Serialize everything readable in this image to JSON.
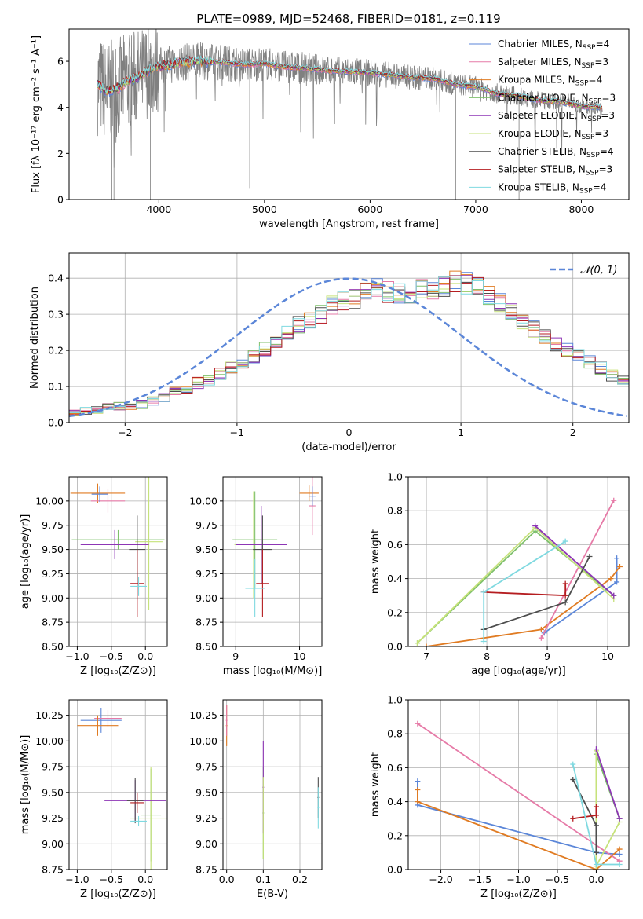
{
  "figure": {
    "title": "PLATE=0989, MJD=52468, FIBERID=0181, z=0.119"
  },
  "colors": {
    "chabrier_miles": "#5b86d8",
    "salpeter_miles": "#e67aa7",
    "kroupa_miles": "#e07b22",
    "chabrier_elodie": "#7fc06c",
    "salpeter_elodie": "#8d35b5",
    "kroupa_elodie": "#c6e27a",
    "chabrier_stelib": "#4d4d4d",
    "salpeter_stelib": "#b51d20",
    "kroupa_stelib": "#7fd9e0",
    "data": "#808080",
    "normal_curve": "#5b86d8",
    "grid": "#b0b0b0"
  },
  "chart_data": [
    {
      "id": "spectrum",
      "type": "line",
      "xlabel": "wavelength [Angstrom, rest frame]",
      "ylabel": "Flux [fλ 10⁻¹⁷ erg cm⁻² s⁻¹ A⁻¹]",
      "xlim": [
        3150,
        8450
      ],
      "ylim": [
        0,
        7.4
      ],
      "xticks": [
        4000,
        5000,
        6000,
        7000,
        8000
      ],
      "yticks": [
        0,
        2,
        4,
        6
      ],
      "grid": false,
      "legend_position": "right",
      "legend": [
        {
          "color": "chabrier_miles",
          "label": "Chabrier MILES, N",
          "sub": "SSP",
          "tail": "=4"
        },
        {
          "color": "salpeter_miles",
          "label": "Salpeter MILES, N",
          "sub": "SSP",
          "tail": "=3"
        },
        {
          "color": "kroupa_miles",
          "label": "Kroupa MILES, N",
          "sub": "SSP",
          "tail": "=4"
        },
        {
          "color": "chabrier_elodie",
          "label": "Chabrier ELODIE, N",
          "sub": "SSP",
          "tail": "=3"
        },
        {
          "color": "salpeter_elodie",
          "label": "Salpeter ELODIE, N",
          "sub": "SSP",
          "tail": "=3"
        },
        {
          "color": "kroupa_elodie",
          "label": "Kroupa ELODIE, N",
          "sub": "SSP",
          "tail": "=3"
        },
        {
          "color": "chabrier_stelib",
          "label": "Chabrier STELIB, N",
          "sub": "SSP",
          "tail": "=4"
        },
        {
          "color": "salpeter_stelib",
          "label": "Salpeter STELIB, N",
          "sub": "SSP",
          "tail": "=3"
        },
        {
          "color": "kroupa_stelib",
          "label": "Kroupa STELIB, N",
          "sub": "SSP",
          "tail": "=4"
        }
      ],
      "continuum": [
        [
          3420,
          5.0
        ],
        [
          3500,
          4.7
        ],
        [
          3600,
          4.8
        ],
        [
          3700,
          5.15
        ],
        [
          3800,
          5.3
        ],
        [
          3900,
          5.6
        ],
        [
          4000,
          5.75
        ],
        [
          4200,
          5.95
        ],
        [
          4400,
          6.0
        ],
        [
          4600,
          5.95
        ],
        [
          4800,
          5.85
        ],
        [
          5000,
          5.9
        ],
        [
          5200,
          5.75
        ],
        [
          5400,
          5.7
        ],
        [
          5600,
          5.6
        ],
        [
          5800,
          5.55
        ],
        [
          6000,
          5.5
        ],
        [
          6200,
          5.4
        ],
        [
          6400,
          5.3
        ],
        [
          6600,
          5.25
        ],
        [
          6800,
          5.0
        ],
        [
          7000,
          4.9
        ],
        [
          7200,
          4.6
        ],
        [
          7400,
          4.5
        ],
        [
          7600,
          4.3
        ],
        [
          7800,
          4.25
        ],
        [
          8000,
          4.05
        ],
        [
          8200,
          4.0
        ]
      ],
      "data_noise": {
        "x_start": 3420,
        "x_end": 8200,
        "amplitude_blue": 1.6,
        "amplitude_red": 0.5
      },
      "dropouts": [
        [
          3555,
          0
        ],
        [
          3575,
          0
        ],
        [
          3920,
          0
        ],
        [
          4860,
          0.5
        ],
        [
          6810,
          0
        ],
        [
          7410,
          0
        ]
      ]
    },
    {
      "id": "residuals",
      "type": "bar",
      "xlabel": "(data-model)/error",
      "ylabel": "Normed distribution",
      "xlim": [
        -2.5,
        2.5
      ],
      "ylim": [
        0,
        0.47
      ],
      "xticks": [
        -2,
        -1,
        0,
        1,
        2
      ],
      "yticks": [
        0.0,
        0.1,
        0.2,
        0.3,
        0.4
      ],
      "grid": true,
      "legend_position": "top-right",
      "legend_label": "𝒩(0, 1)",
      "bin_width": 0.1,
      "bin_start": -2.5,
      "mean_hist": [
        0.03,
        0.033,
        0.037,
        0.042,
        0.045,
        0.045,
        0.05,
        0.06,
        0.07,
        0.085,
        0.095,
        0.11,
        0.12,
        0.135,
        0.15,
        0.17,
        0.185,
        0.205,
        0.225,
        0.245,
        0.27,
        0.285,
        0.3,
        0.325,
        0.335,
        0.345,
        0.36,
        0.37,
        0.36,
        0.355,
        0.34,
        0.37,
        0.37,
        0.38,
        0.39,
        0.385,
        0.375,
        0.35,
        0.33,
        0.31,
        0.285,
        0.26,
        0.235,
        0.215,
        0.2,
        0.185,
        0.17,
        0.15,
        0.13,
        0.115,
        0.105,
        0.09,
        0.078,
        0.065,
        0.058,
        0.05,
        0.045,
        0.04,
        0.035,
        0.032
      ],
      "normal_curve": {
        "mean": 0,
        "sigma": 1
      }
    },
    {
      "id": "age_vs_Z",
      "type": "scatter",
      "xlabel": "Z [log10(Z/Z☉)]",
      "ylabel": "age  [log10(age/yr)]",
      "xlim": [
        -1.12,
        0.32
      ],
      "ylim": [
        8.5,
        10.25
      ],
      "xticks": [
        -1.0,
        -0.5,
        0.0
      ],
      "yticks": [
        8.5,
        8.75,
        9.0,
        9.25,
        9.5,
        9.75,
        10.0
      ],
      "grid": true,
      "points": [
        {
          "c": "kroupa_miles",
          "x": -0.7,
          "y": 10.08,
          "xerr": 0.4,
          "yerr": 0.1
        },
        {
          "c": "salpeter_miles",
          "x": -0.55,
          "y": 10.0,
          "xerr": 0.25,
          "yerr": 0.12
        },
        {
          "c": "chabrier_miles",
          "x": -0.67,
          "y": 10.07,
          "xerr": 0.12,
          "yerr": 0.08
        },
        {
          "c": "chabrier_elodie",
          "x": -0.4,
          "y": 9.6,
          "xerr": 0.68,
          "yerr": 0.1
        },
        {
          "c": "kroupa_elodie",
          "x": 0.05,
          "y": 9.58,
          "xerr": 0.2,
          "yerr": 0.7
        },
        {
          "c": "salpeter_elodie",
          "x": -0.45,
          "y": 9.55,
          "xerr": 0.5,
          "yerr": 0.15
        },
        {
          "c": "chabrier_stelib",
          "x": -0.12,
          "y": 9.5,
          "xerr": 0.12,
          "yerr": 0.35
        },
        {
          "c": "salpeter_stelib",
          "x": -0.12,
          "y": 9.15,
          "xerr": 0.1,
          "yerr": 0.35
        },
        {
          "c": "kroupa_stelib",
          "x": -0.1,
          "y": 9.12,
          "xerr": 0.12,
          "yerr": 0.1
        }
      ]
    },
    {
      "id": "age_vs_mass",
      "type": "scatter",
      "xlabel": "mass [log10(M/M☉)]",
      "ylabel": "",
      "xlim": [
        8.8,
        10.35
      ],
      "ylim": [
        8.5,
        10.25
      ],
      "xticks": [
        9,
        10
      ],
      "yticks": [
        8.5,
        8.75,
        9.0,
        9.25,
        9.5,
        9.75,
        10.0
      ],
      "grid": true,
      "points": [
        {
          "c": "kroupa_miles",
          "x": 10.15,
          "y": 10.08,
          "xerr": 0.15,
          "yerr": 0.08
        },
        {
          "c": "salpeter_miles",
          "x": 10.2,
          "y": 9.95,
          "xerr": 0.05,
          "yerr": 0.3
        },
        {
          "c": "chabrier_miles",
          "x": 10.2,
          "y": 10.05,
          "xerr": 0.05,
          "yerr": 0.1
        },
        {
          "c": "chabrier_elodie",
          "x": 9.3,
          "y": 9.6,
          "xerr": 0.35,
          "yerr": 0.5
        },
        {
          "c": "kroupa_elodie",
          "x": 9.28,
          "y": 9.55,
          "xerr": 0.3,
          "yerr": 0.55
        },
        {
          "c": "salpeter_elodie",
          "x": 9.4,
          "y": 9.55,
          "xerr": 0.4,
          "yerr": 0.4
        },
        {
          "c": "chabrier_stelib",
          "x": 9.42,
          "y": 9.5,
          "xerr": 0.15,
          "yerr": 0.35
        },
        {
          "c": "salpeter_stelib",
          "x": 9.42,
          "y": 9.15,
          "xerr": 0.1,
          "yerr": 0.35
        },
        {
          "c": "kroupa_stelib",
          "x": 9.3,
          "y": 9.1,
          "xerr": 0.15,
          "yerr": 0.3
        }
      ]
    },
    {
      "id": "mass_weight_vs_age",
      "type": "line",
      "xlabel": "age  [log10(age/yr)]",
      "ylabel": "mass weight",
      "xlim": [
        6.7,
        10.35
      ],
      "ylim": [
        0,
        1.0
      ],
      "xticks": [
        7,
        8,
        9,
        10
      ],
      "yticks": [
        0.0,
        0.2,
        0.4,
        0.6,
        0.8,
        1.0
      ],
      "grid": true,
      "series": [
        {
          "c": "chabrier_miles",
          "x": [
            8.95,
            10.15,
            10.15
          ],
          "y": [
            0.08,
            0.38,
            0.52
          ]
        },
        {
          "c": "kroupa_miles",
          "x": [
            7.0,
            8.9,
            10.05,
            10.2
          ],
          "y": [
            0.0,
            0.1,
            0.4,
            0.47
          ]
        },
        {
          "c": "salpeter_miles",
          "x": [
            8.9,
            10.1
          ],
          "y": [
            0.05,
            0.86
          ]
        },
        {
          "c": "chabrier_elodie",
          "x": [
            6.85,
            8.8,
            10.1
          ],
          "y": [
            0.02,
            0.68,
            0.3
          ]
        },
        {
          "c": "kroupa_elodie",
          "x": [
            6.85,
            8.8,
            10.1
          ],
          "y": [
            0.02,
            0.7,
            0.28
          ]
        },
        {
          "c": "salpeter_elodie",
          "x": [
            8.8,
            10.1
          ],
          "y": [
            0.71,
            0.3
          ]
        },
        {
          "c": "chabrier_stelib",
          "x": [
            7.95,
            9.3,
            9.7
          ],
          "y": [
            0.1,
            0.26,
            0.53
          ]
        },
        {
          "c": "salpeter_stelib",
          "x": [
            7.95,
            9.3,
            9.3
          ],
          "y": [
            0.32,
            0.3,
            0.37
          ]
        },
        {
          "c": "kroupa_stelib",
          "x": [
            7.95,
            7.95,
            9.3
          ],
          "y": [
            0.03,
            0.32,
            0.62
          ]
        }
      ]
    },
    {
      "id": "mass_vs_Z",
      "type": "scatter",
      "xlabel": "Z [log10(Z/Z☉)]",
      "ylabel": "mass [log10(M/M☉)]",
      "xlim": [
        -1.12,
        0.32
      ],
      "ylim": [
        8.75,
        10.4
      ],
      "xticks": [
        -1.0,
        -0.5,
        0.0
      ],
      "yticks": [
        8.75,
        9.0,
        9.25,
        9.5,
        9.75,
        10.0,
        10.25
      ],
      "grid": true,
      "points": [
        {
          "c": "chabrier_miles",
          "x": -0.65,
          "y": 10.2,
          "xerr": 0.3,
          "yerr": 0.12
        },
        {
          "c": "salpeter_miles",
          "x": -0.55,
          "y": 10.22,
          "xerr": 0.2,
          "yerr": 0.08
        },
        {
          "c": "kroupa_miles",
          "x": -0.7,
          "y": 10.15,
          "xerr": 0.3,
          "yerr": 0.1
        },
        {
          "c": "chabrier_elodie",
          "x": 0.08,
          "y": 9.28,
          "xerr": 0.15,
          "yerr": 0.45
        },
        {
          "c": "kroupa_elodie",
          "x": 0.08,
          "y": 9.25,
          "xerr": 0.3,
          "yerr": 0.5
        },
        {
          "c": "salpeter_elodie",
          "x": -0.15,
          "y": 9.42,
          "xerr": 0.45,
          "yerr": 0.2
        },
        {
          "c": "chabrier_stelib",
          "x": -0.15,
          "y": 9.42,
          "xerr": 0.12,
          "yerr": 0.22
        },
        {
          "c": "salpeter_stelib",
          "x": -0.12,
          "y": 9.4,
          "xerr": 0.1,
          "yerr": 0.1
        },
        {
          "c": "kroupa_stelib",
          "x": -0.1,
          "y": 9.22,
          "xerr": 0.12,
          "yerr": 0.05
        }
      ]
    },
    {
      "id": "mass_vs_ebv",
      "type": "scatter",
      "xlabel": "E(B-V)",
      "ylabel": "",
      "xlim": [
        -0.01,
        0.26
      ],
      "ylim": [
        8.75,
        10.4
      ],
      "xticks": [
        0.0,
        0.1,
        0.2
      ],
      "yticks": [
        8.75,
        9.0,
        9.25,
        9.5,
        9.75,
        10.0,
        10.25
      ],
      "grid": true,
      "points": [
        {
          "c": "kroupa_miles",
          "x": 0.0,
          "y": 10.15,
          "xerr": 0.0,
          "yerr": 0.2
        },
        {
          "c": "salpeter_miles",
          "x": 0.0,
          "y": 10.2,
          "xerr": 0.0,
          "yerr": 0.15
        },
        {
          "c": "chabrier_elodie",
          "x": 0.1,
          "y": 9.3,
          "xerr": 0.0,
          "yerr": 0.45
        },
        {
          "c": "salpeter_elodie",
          "x": 0.1,
          "y": 9.55,
          "xerr": 0.0,
          "yerr": 0.45
        },
        {
          "c": "kroupa_elodie",
          "x": 0.1,
          "y": 9.25,
          "xerr": 0.0,
          "yerr": 0.4
        },
        {
          "c": "chabrier_stelib",
          "x": 0.25,
          "y": 9.45,
          "xerr": 0.0,
          "yerr": 0.2
        },
        {
          "c": "kroupa_stelib",
          "x": 0.25,
          "y": 9.35,
          "xerr": 0.0,
          "yerr": 0.2
        }
      ]
    },
    {
      "id": "mass_weight_vs_Z",
      "type": "line",
      "xlabel": "Z [log10(Z/Z☉)]",
      "ylabel": "mass weight",
      "xlim": [
        -2.42,
        0.42
      ],
      "ylim": [
        0,
        1.0
      ],
      "xticks": [
        -2.0,
        -1.5,
        -1.0,
        -0.5,
        0.0
      ],
      "yticks": [
        0.0,
        0.2,
        0.4,
        0.6,
        0.8,
        1.0
      ],
      "grid": true,
      "series": [
        {
          "c": "chabrier_miles",
          "x": [
            -2.3,
            -2.3,
            0.0,
            0.3
          ],
          "y": [
            0.52,
            0.38,
            0.1,
            0.09
          ]
        },
        {
          "c": "kroupa_miles",
          "x": [
            -2.3,
            -2.3,
            0.0,
            0.3
          ],
          "y": [
            0.47,
            0.4,
            0.0,
            0.12
          ]
        },
        {
          "c": "salpeter_miles",
          "x": [
            -2.3,
            0.3
          ],
          "y": [
            0.86,
            0.05
          ]
        },
        {
          "c": "chabrier_elodie",
          "x": [
            0.0,
            0.3
          ],
          "y": [
            0.68,
            0.3
          ]
        },
        {
          "c": "kroupa_elodie",
          "x": [
            0.0,
            0.0,
            0.3
          ],
          "y": [
            0.7,
            0.02,
            0.28
          ]
        },
        {
          "c": "salpeter_elodie",
          "x": [
            0.0,
            0.3
          ],
          "y": [
            0.71,
            0.3
          ]
        },
        {
          "c": "chabrier_stelib",
          "x": [
            -0.3,
            0.0,
            0.0
          ],
          "y": [
            0.53,
            0.26,
            0.1
          ]
        },
        {
          "c": "salpeter_stelib",
          "x": [
            -0.3,
            0.0,
            0.0
          ],
          "y": [
            0.3,
            0.32,
            0.37
          ]
        },
        {
          "c": "kroupa_stelib",
          "x": [
            -0.3,
            0.0,
            0.3
          ],
          "y": [
            0.62,
            0.03,
            0.03
          ]
        }
      ]
    }
  ]
}
